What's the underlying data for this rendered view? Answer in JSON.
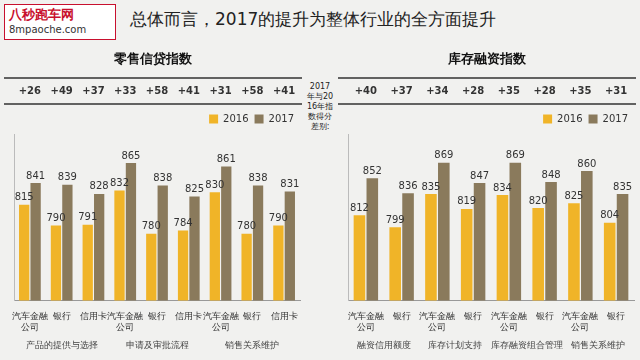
{
  "title": "总体而言，2017的提升为整体行业的全方面提升",
  "logo": {
    "name": "八秒跑车网",
    "url": "8mpaoche.com"
  },
  "note": "2017年与2016年指数得分差别:",
  "chart_data": [
    {
      "type": "bar",
      "title": "零售信贷指数",
      "categories": [
        "汽车金融公司",
        "银行",
        "信用卡",
        "汽车金融公司",
        "银行",
        "信用卡",
        "汽车金融公司",
        "银行",
        "信用卡"
      ],
      "category_groups": [
        "产品的提供与选择",
        "产品的提供与选择",
        "产品的提供与选择",
        "申请及审批流程",
        "申请及审批流程",
        "申请及审批流程",
        "销售关系维护",
        "销售关系维护",
        "销售关系维护"
      ],
      "series": [
        {
          "name": "2016",
          "color": "#f0b428",
          "values": [
            815,
            790,
            791,
            832,
            780,
            784,
            830,
            780,
            790
          ]
        },
        {
          "name": "2017",
          "color": "#8a7a5c",
          "values": [
            841,
            839,
            828,
            865,
            838,
            825,
            861,
            838,
            831
          ]
        }
      ],
      "difference_labels": [
        "+26",
        "+49",
        "+37",
        "+33",
        "+58",
        "+41",
        "+31",
        "+58",
        "+41"
      ],
      "ylim": [
        700,
        900
      ],
      "grid": false,
      "legend": "upper right",
      "data_labels": true,
      "tick_labels": "x"
    },
    {
      "type": "bar",
      "title": "库存融资指数",
      "categories": [
        "汽车金融公司",
        "银行",
        "汽车金融公司",
        "银行",
        "汽车金融公司",
        "银行",
        "汽车金融公司",
        "银行"
      ],
      "category_groups": [
        "融资信用额度",
        "融资信用额度",
        "库存计划支持",
        "库存计划支持",
        "库存融资组合管理",
        "库存融资组合管理",
        "销售关系维护",
        "销售关系维护"
      ],
      "series": [
        {
          "name": "2016",
          "color": "#f0b428",
          "values": [
            812,
            799,
            835,
            819,
            834,
            820,
            825,
            804
          ]
        },
        {
          "name": "2017",
          "color": "#8a7a5c",
          "values": [
            852,
            836,
            869,
            847,
            869,
            848,
            860,
            835
          ]
        }
      ],
      "difference_labels": [
        "+40",
        "+37",
        "+34",
        "+28",
        "+35",
        "+28",
        "+35",
        "+31"
      ],
      "ylim": [
        720,
        900
      ],
      "grid": false,
      "legend": "upper right",
      "data_labels": true,
      "tick_labels": "x"
    }
  ]
}
